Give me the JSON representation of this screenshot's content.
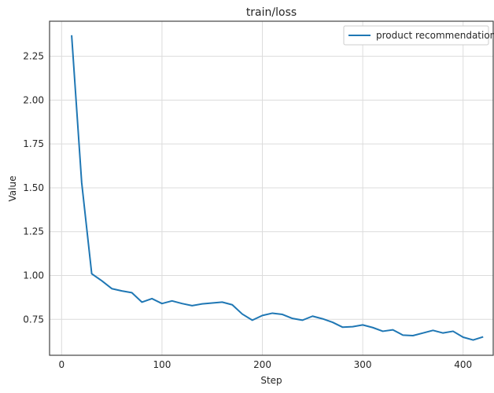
{
  "chart_data": {
    "type": "line",
    "title": "train/loss",
    "xlabel": "Step",
    "ylabel": "Value",
    "xlim": [
      -12,
      430
    ],
    "ylim": [
      0.545,
      2.45
    ],
    "grid": true,
    "legend_position": "top-right",
    "x_ticks": [
      0,
      100,
      200,
      300,
      400
    ],
    "x_tick_labels": [
      "0",
      "100",
      "200",
      "300",
      "400"
    ],
    "y_ticks": [
      0.75,
      1.0,
      1.25,
      1.5,
      1.75,
      2.0,
      2.25
    ],
    "y_tick_labels": [
      "0.75",
      "1.00",
      "1.25",
      "1.50",
      "1.75",
      "2.00",
      "2.25"
    ],
    "series": [
      {
        "name": "product recommendation",
        "color": "#1f77b4",
        "x": [
          10,
          20,
          30,
          40,
          50,
          60,
          70,
          80,
          90,
          100,
          110,
          120,
          130,
          140,
          150,
          160,
          170,
          180,
          190,
          200,
          210,
          220,
          230,
          240,
          250,
          260,
          270,
          280,
          290,
          300,
          310,
          320,
          330,
          340,
          350,
          360,
          370,
          380,
          390,
          400,
          410,
          420
        ],
        "y": [
          2.37,
          1.53,
          1.01,
          0.97,
          0.925,
          0.912,
          0.902,
          0.848,
          0.868,
          0.84,
          0.855,
          0.84,
          0.828,
          0.838,
          0.843,
          0.848,
          0.833,
          0.78,
          0.745,
          0.772,
          0.785,
          0.778,
          0.755,
          0.745,
          0.768,
          0.753,
          0.733,
          0.705,
          0.708,
          0.718,
          0.703,
          0.682,
          0.69,
          0.66,
          0.657,
          0.672,
          0.687,
          0.672,
          0.682,
          0.648,
          0.632,
          0.65
        ]
      }
    ]
  }
}
